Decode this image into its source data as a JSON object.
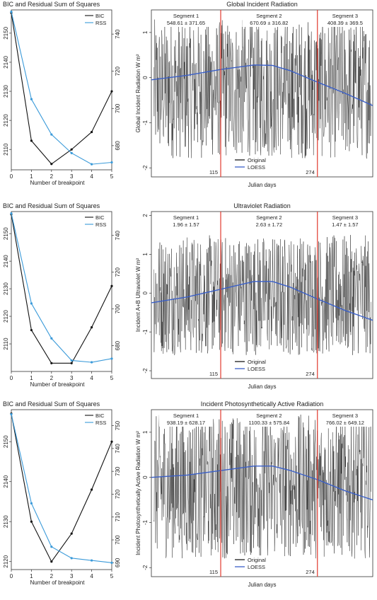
{
  "colors": {
    "bic": "#111111",
    "rss": "#3a9ad9",
    "loess": "#3a5fc8",
    "breakpoint": "#e23a2e",
    "original": "#1a1a1a"
  },
  "chart_data": [
    {
      "type": "line",
      "title": "BIC and Residual Sum of Squares",
      "xlabel": "Number of breakpoint",
      "x": [
        0,
        1,
        2,
        3,
        4,
        5
      ],
      "xlim": [
        0,
        5
      ],
      "series": [
        {
          "name": "BIC",
          "axis": "left",
          "values": [
            2157,
            2113,
            2105,
            2110,
            2116,
            2130
          ]
        },
        {
          "name": "RSS",
          "axis": "right",
          "values": [
            752,
            705,
            686,
            676,
            670,
            671
          ]
        }
      ],
      "ylim_left": [
        2103,
        2158
      ],
      "yticks_left": [
        2110,
        2120,
        2130,
        2140,
        2150
      ],
      "ylim_right": [
        667,
        753
      ],
      "yticks_right": [
        680,
        700,
        720,
        740
      ],
      "legend": "top-right"
    },
    {
      "type": "line",
      "title": "Global Incident Radiation",
      "xlabel": "Julian days",
      "ylabel": "Global Incident Radiation W m²",
      "yticks": [
        -2,
        -1,
        0,
        1
      ],
      "ylim": [
        -2.2,
        1.5
      ],
      "xlim": [
        1,
        365
      ],
      "breakpoints": [
        115,
        274
      ],
      "breakpoint_labels": [
        "115",
        "274"
      ],
      "segments": [
        {
          "label": "Segment 1",
          "stat": "548.61 ± 371.65"
        },
        {
          "label": "Segment 2",
          "stat": "670.69 ± 316.82"
        },
        {
          "label": "Segment 3",
          "stat": "408.39 ± 369.5"
        }
      ],
      "series": [
        {
          "name": "Original",
          "kind": "noise",
          "range": [
            -1.8,
            1.3
          ]
        },
        {
          "name": "LOESS",
          "x": [
            1,
            60,
            115,
            170,
            200,
            230,
            274,
            320,
            365
          ],
          "values": [
            -0.05,
            0.05,
            0.18,
            0.28,
            0.27,
            0.15,
            -0.1,
            -0.35,
            -0.62
          ]
        }
      ],
      "legend": "bottom-center"
    },
    {
      "type": "line",
      "title": "BIC and Residual Sum of Squares",
      "xlabel": "Number of breakpoint",
      "x": [
        0,
        1,
        2,
        3,
        4,
        5
      ],
      "xlim": [
        0,
        5
      ],
      "series": [
        {
          "name": "BIC",
          "axis": "left",
          "values": [
            2157,
            2115,
            2103,
            2103,
            2116,
            2131
          ]
        },
        {
          "name": "RSS",
          "axis": "right",
          "values": [
            752,
            703,
            684,
            672,
            671,
            673
          ]
        }
      ],
      "ylim_left": [
        2100,
        2158
      ],
      "yticks_left": [
        2110,
        2120,
        2130,
        2140,
        2150
      ],
      "ylim_right": [
        666,
        753
      ],
      "yticks_right": [
        680,
        700,
        720,
        740
      ],
      "legend": "top-right"
    },
    {
      "type": "line",
      "title": "Ultraviolet Radiation",
      "xlabel": "Julian days",
      "ylabel": "Incident A+B Ultraviolet W m²",
      "yticks": [
        -2,
        -1,
        0,
        1,
        2
      ],
      "ylim": [
        -2.2,
        2.1
      ],
      "xlim": [
        1,
        365
      ],
      "breakpoints": [
        115,
        274
      ],
      "breakpoint_labels": [
        "115",
        "274"
      ],
      "segments": [
        {
          "label": "Segment 1",
          "stat": "1.96 ± 1.57"
        },
        {
          "label": "Segment 2",
          "stat": "2.63 ± 1.72"
        },
        {
          "label": "Segment 3",
          "stat": "1.47 ± 1.57"
        }
      ],
      "series": [
        {
          "name": "Original",
          "kind": "noise",
          "range": [
            -1.6,
            1.5
          ]
        },
        {
          "name": "LOESS",
          "x": [
            1,
            60,
            115,
            170,
            200,
            230,
            274,
            320,
            365
          ],
          "values": [
            -0.25,
            -0.1,
            0.1,
            0.3,
            0.3,
            0.15,
            -0.15,
            -0.45,
            -0.7
          ]
        }
      ],
      "legend": "bottom-center"
    },
    {
      "type": "line",
      "title": "BIC and Residual Sum of Squares",
      "xlabel": "Number of breakpoint",
      "x": [
        0,
        1,
        2,
        3,
        4,
        5
      ],
      "xlim": [
        0,
        5
      ],
      "series": [
        {
          "name": "BIC",
          "axis": "left",
          "values": [
            2157,
            2130,
            2120,
            2127,
            2138,
            2150
          ]
        },
        {
          "name": "RSS",
          "axis": "right",
          "values": [
            755,
            716,
            697,
            692,
            691,
            690
          ]
        }
      ],
      "ylim_left": [
        2118,
        2158
      ],
      "yticks_left": [
        2120,
        2130,
        2140,
        2150
      ],
      "ylim_right": [
        687,
        757
      ],
      "yticks_right": [
        690,
        700,
        710,
        720,
        730,
        740,
        750
      ],
      "legend": "top-right"
    },
    {
      "type": "line",
      "title": "Incident Photosynthetically Active Radiation",
      "xlabel": "Julian days",
      "ylabel": "Incident Photosynthetically Active Radiation W m²",
      "yticks": [
        -2,
        -1,
        0,
        1
      ],
      "ylim": [
        -2.2,
        1.5
      ],
      "xlim": [
        1,
        365
      ],
      "breakpoints": [
        115,
        274
      ],
      "breakpoint_labels": [
        "115",
        "274"
      ],
      "segments": [
        {
          "label": "Segment 1",
          "stat": "938.19 ± 628.17"
        },
        {
          "label": "Segment 2",
          "stat": "1100.33 ± 575.84"
        },
        {
          "label": "Segment 3",
          "stat": "766.02 ± 649.12"
        }
      ],
      "series": [
        {
          "name": "Original",
          "kind": "noise",
          "range": [
            -1.8,
            1.4
          ]
        },
        {
          "name": "LOESS",
          "x": [
            1,
            60,
            115,
            170,
            200,
            230,
            274,
            320,
            365
          ],
          "values": [
            0.0,
            0.05,
            0.15,
            0.25,
            0.25,
            0.15,
            -0.05,
            -0.3,
            -0.5
          ]
        }
      ],
      "legend": "bottom-center"
    }
  ]
}
